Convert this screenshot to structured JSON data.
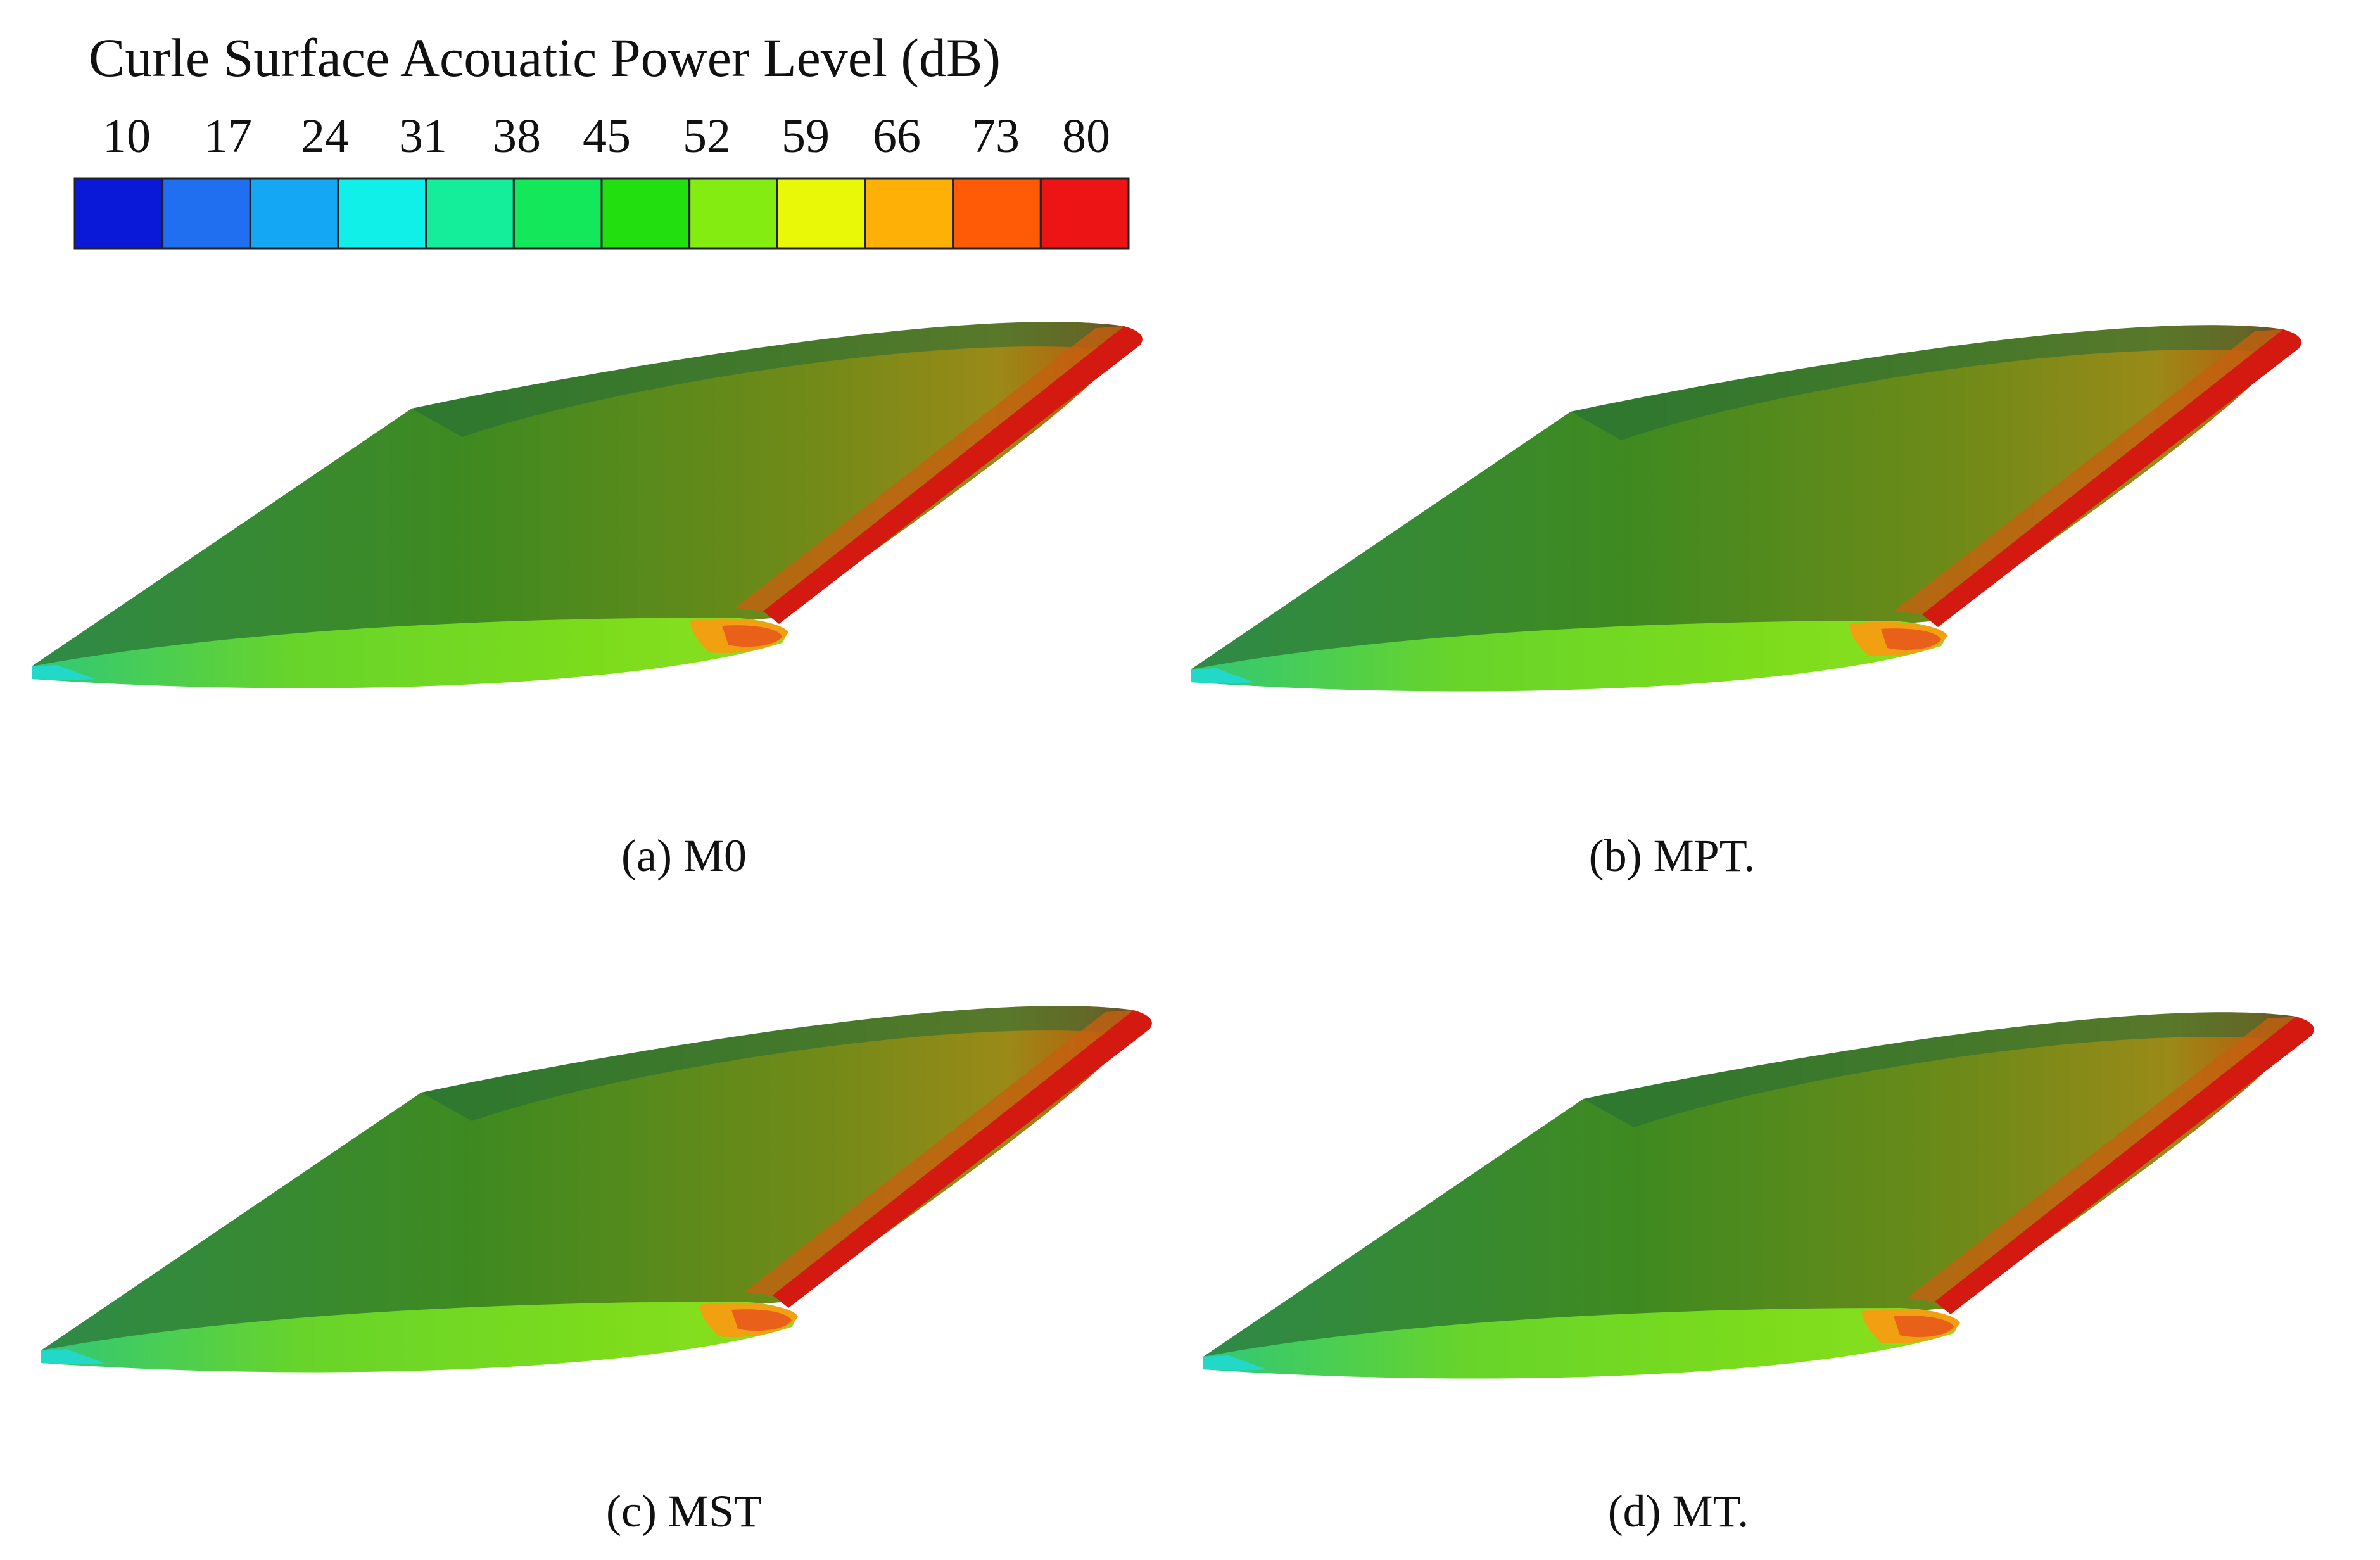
{
  "colorbar": {
    "title": "Curle Surface Acouatic Power Level (dB)",
    "ticks": [
      "10",
      "17",
      "24",
      "31",
      "38",
      "45",
      "52",
      "59",
      "66",
      "73",
      "80"
    ],
    "colors": [
      "#0a18d8",
      "#1f6ff0",
      "#14a8f4",
      "#10f0e8",
      "#14ee9a",
      "#12e85a",
      "#22e010",
      "#84ec10",
      "#e8f806",
      "#ffb006",
      "#ff5a06",
      "#ec1414"
    ]
  },
  "panels": [
    {
      "caption": "(a) M0"
    },
    {
      "caption": "(b) MPT."
    },
    {
      "caption": "(c) MST"
    },
    {
      "caption": "(d) MT."
    }
  ]
}
